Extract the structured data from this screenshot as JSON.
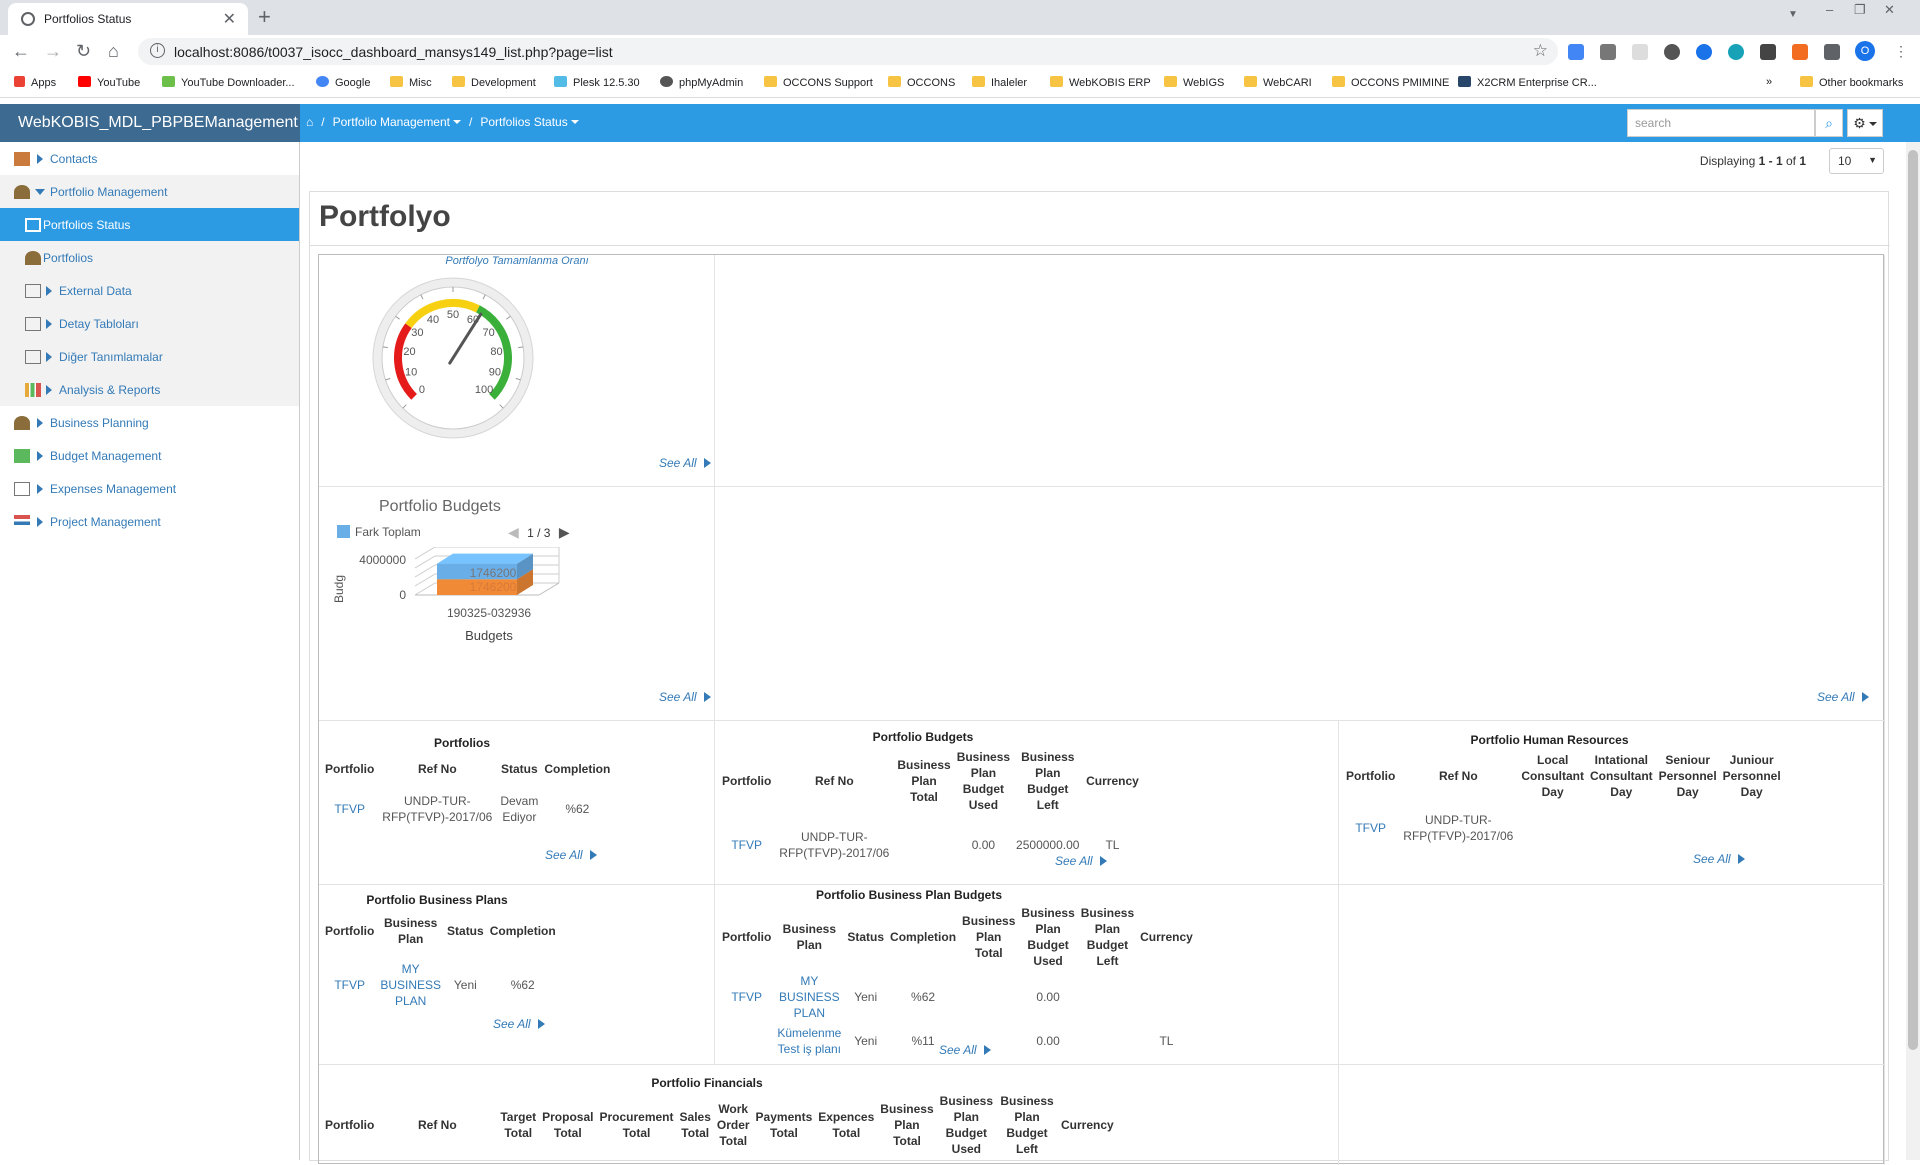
{
  "browser": {
    "tab_title": "Portfolios Status",
    "url": "localhost:8086/t0037_isocc_dashboard_mansys149_list.php?page=list",
    "bookmarks": [
      "Apps",
      "YouTube",
      "YouTube Downloader...",
      "Google",
      "Misc",
      "Development",
      "Plesk 12.5.30",
      "phpMyAdmin",
      "OCCONS Support",
      "OCCONS",
      "Ihaleler",
      "WebKOBIS ERP",
      "WebIGS",
      "WebCARI",
      "OCCONS PMIMINE",
      "X2CRM Enterprise CR..."
    ],
    "more_bookmarks": "»",
    "other_bookmarks": "Other bookmarks",
    "profile_initial": "O"
  },
  "app": {
    "brand": "WebKOBIS_MDL_PBPBEManagement",
    "breadcrumb": [
      "Portfolio Management",
      "Portfolios Status"
    ],
    "search_placeholder": "search"
  },
  "sidebar": {
    "items": [
      {
        "label": "Contacts",
        "icon": "contacts-icon"
      },
      {
        "label": "Portfolio Management",
        "icon": "portfolio-icon"
      },
      {
        "label": "Portfolios Status",
        "icon": "table-icon"
      },
      {
        "label": "Portfolios",
        "icon": "portfolio-icon"
      },
      {
        "label": "External Data",
        "icon": "window-icon"
      },
      {
        "label": "Detay Tabloları",
        "icon": "window-icon"
      },
      {
        "label": "Diğer Tanımlamalar",
        "icon": "window-icon"
      },
      {
        "label": "Analysis & Reports",
        "icon": "bar-chart-icon"
      },
      {
        "label": "Business Planning",
        "icon": "portfolio-icon"
      },
      {
        "label": "Budget Management",
        "icon": "budget-icon"
      },
      {
        "label": "Expenses Management",
        "icon": "window-icon"
      },
      {
        "label": "Project Management",
        "icon": "project-icon"
      }
    ]
  },
  "pager": {
    "displaying_prefix": "Displaying ",
    "range": "1 - 1",
    "of": " of ",
    "total": "1",
    "page_size": "10"
  },
  "page": {
    "title": "Portfolyo",
    "see_all": "See All"
  },
  "gauge": {
    "title": "Portfolyo Tamamlanma Oranı",
    "value": 62,
    "min": 0,
    "max": 100,
    "ticks": [
      "0",
      "10",
      "20",
      "30",
      "40",
      "50",
      "60",
      "70",
      "80",
      "90",
      "100"
    ],
    "band_colors": [
      "#e51b1b",
      "#f7d111",
      "#3ab03a"
    ]
  },
  "budget_chart": {
    "title": "Portfolio Budgets",
    "legend": "Fark Toplam",
    "pager": "1 / 3",
    "ylabel": "Budg",
    "xlabel": "Budgets",
    "category": "190325-032936",
    "yticks": [
      "4000000",
      "0"
    ],
    "label_top": "1746200",
    "label_bottom": "1746200"
  },
  "chart_data": {
    "type": "bar",
    "title": "Portfolio Budgets",
    "categories": [
      "190325-032936"
    ],
    "series": [
      {
        "name": "Fark Toplam",
        "values": [
          1746200
        ],
        "color": "#6aaee8"
      },
      {
        "values": [
          1746200
        ],
        "color": "#f08a36"
      }
    ],
    "xlabel": "Budgets",
    "ylabel": "Budg",
    "ylim": [
      0,
      4000000
    ]
  },
  "tables": {
    "portfolios": {
      "title": "Portfolios",
      "headers": [
        "Portfolio",
        "Ref No",
        "Status",
        "Completion"
      ],
      "rows": [
        [
          "TFVP",
          "UNDP-TUR-RFP(TFVP)-2017/06",
          "Devam Ediyor",
          "%62"
        ]
      ]
    },
    "budgets": {
      "title": "Portfolio Budgets",
      "headers": [
        "Portfolio",
        "Ref No",
        "Business Plan Total",
        "Business Plan Budget Used",
        "Business Plan Budget Left",
        "Currency"
      ],
      "rows": [
        [
          "TFVP",
          "UNDP-TUR-RFP(TFVP)-2017/06",
          "",
          "0.00",
          "2500000.00",
          "TL"
        ]
      ]
    },
    "hr": {
      "title": "Portfolio Human Resources",
      "headers": [
        "Portfolio",
        "Ref No",
        "Local Consultant Day",
        "Intational Consultant Day",
        "Seniour Personnel Day",
        "Juniour Personnel Day"
      ],
      "rows": [
        [
          "TFVP",
          "UNDP-TUR-RFP(TFVP)-2017/06",
          "",
          "",
          "",
          ""
        ]
      ]
    },
    "business_plans": {
      "title": "Portfolio Business Plans",
      "headers": [
        "Portfolio",
        "Business Plan",
        "Status",
        "Completion"
      ],
      "rows": [
        [
          "TFVP",
          "MY BUSINESS PLAN",
          "Yeni",
          "%62"
        ]
      ]
    },
    "bp_budgets": {
      "title": "Portfolio Business Plan Budgets",
      "headers": [
        "Portfolio",
        "Business Plan",
        "Status",
        "Completion",
        "Business Plan Total",
        "Business Plan Budget Used",
        "Business Plan Budget Left",
        "Currency"
      ],
      "rows": [
        [
          "TFVP",
          "MY BUSINESS PLAN",
          "Yeni",
          "%62",
          "",
          "0.00",
          "",
          ""
        ],
        [
          "",
          "Kümelenme Test iş planı",
          "Yeni",
          "%11",
          "",
          "0.00",
          "",
          "TL"
        ]
      ]
    },
    "financials": {
      "title": "Portfolio Financials",
      "headers": [
        "Portfolio",
        "Ref No",
        "Target Total",
        "Proposal Total",
        "Procurement Total",
        "Sales Total",
        "Work Order Total",
        "Payments Total",
        "Expences Total",
        "Business Plan Total",
        "Business Plan Budget Used",
        "Business Plan Budget Left",
        "Currency"
      ]
    }
  }
}
